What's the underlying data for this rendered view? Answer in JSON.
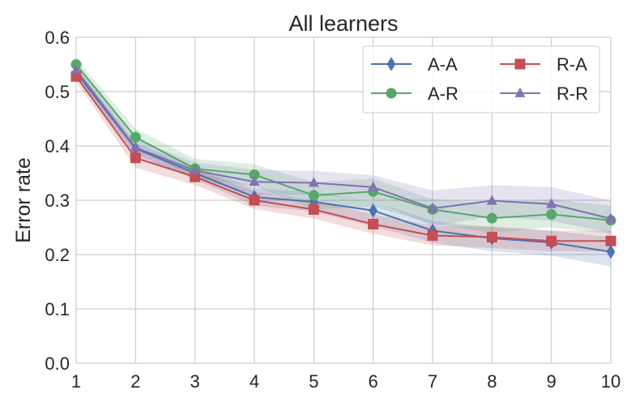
{
  "chart_data": {
    "type": "line",
    "title": "All learners",
    "xlabel": "",
    "ylabel": "Error rate",
    "x": [
      1,
      2,
      3,
      4,
      5,
      6,
      7,
      8,
      9,
      10
    ],
    "xlim": [
      1,
      10
    ],
    "ylim": [
      0,
      0.6
    ],
    "yticks": [
      "0.0",
      "0.1",
      "0.2",
      "0.3",
      "0.4",
      "0.5",
      "0.6"
    ],
    "xticks": [
      "1",
      "2",
      "3",
      "4",
      "5",
      "6",
      "7",
      "8",
      "9",
      "10"
    ],
    "grid": true,
    "legend_position": "top-right",
    "series": [
      {
        "name": "A-A",
        "color": "#4c72b0",
        "marker": "diamond",
        "values": [
          0.535,
          0.395,
          0.35,
          0.306,
          0.297,
          0.281,
          0.244,
          0.23,
          0.222,
          0.205
        ],
        "lower": [
          0.525,
          0.385,
          0.338,
          0.29,
          0.279,
          0.252,
          0.222,
          0.206,
          0.198,
          0.178
        ],
        "upper": [
          0.545,
          0.405,
          0.362,
          0.322,
          0.315,
          0.298,
          0.262,
          0.25,
          0.244,
          0.232
        ]
      },
      {
        "name": "A-R",
        "color": "#55a868",
        "marker": "circle",
        "values": [
          0.55,
          0.416,
          0.358,
          0.347,
          0.309,
          0.316,
          0.283,
          0.267,
          0.274,
          0.263
        ],
        "lower": [
          0.54,
          0.398,
          0.34,
          0.326,
          0.283,
          0.288,
          0.257,
          0.24,
          0.25,
          0.238
        ],
        "upper": [
          0.56,
          0.432,
          0.376,
          0.366,
          0.333,
          0.34,
          0.302,
          0.294,
          0.302,
          0.29
        ]
      },
      {
        "name": "R-A",
        "color": "#c44e52",
        "marker": "square",
        "values": [
          0.528,
          0.378,
          0.343,
          0.3,
          0.283,
          0.256,
          0.235,
          0.232,
          0.225,
          0.225
        ],
        "lower": [
          0.518,
          0.36,
          0.328,
          0.284,
          0.266,
          0.238,
          0.217,
          0.212,
          0.206,
          0.206
        ],
        "upper": [
          0.538,
          0.396,
          0.358,
          0.316,
          0.3,
          0.274,
          0.253,
          0.252,
          0.244,
          0.244
        ]
      },
      {
        "name": "R-R",
        "color": "#8172b2",
        "marker": "triangle",
        "values": [
          0.54,
          0.397,
          0.355,
          0.334,
          0.332,
          0.324,
          0.285,
          0.299,
          0.293,
          0.266
        ],
        "lower": [
          0.53,
          0.382,
          0.34,
          0.31,
          0.31,
          0.3,
          0.252,
          0.27,
          0.262,
          0.24
        ],
        "upper": [
          0.55,
          0.412,
          0.37,
          0.356,
          0.354,
          0.346,
          0.318,
          0.328,
          0.324,
          0.3
        ]
      }
    ]
  }
}
